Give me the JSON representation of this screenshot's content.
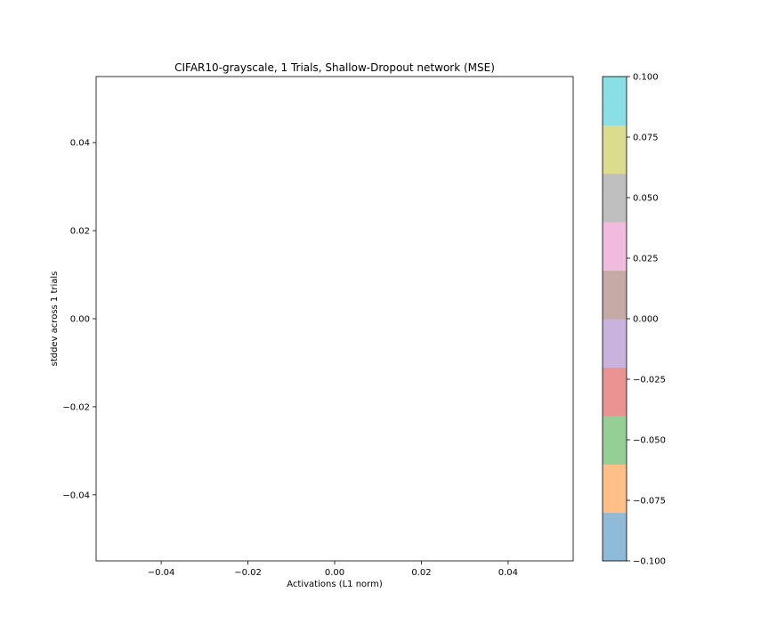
{
  "chart_data": {
    "type": "scatter",
    "title": "CIFAR10-grayscale, 1 Trials, Shallow-Dropout network (MSE)",
    "xlabel": "Activations (L1 norm)",
    "ylabel": "stddev across 1 trials",
    "xlim": [
      -0.055,
      0.055
    ],
    "ylim": [
      -0.055,
      0.055
    ],
    "x_ticks": [
      -0.04,
      -0.02,
      0.0,
      0.02,
      0.04
    ],
    "x_tick_labels": [
      "−0.04",
      "−0.02",
      "0.00",
      "0.02",
      "0.04"
    ],
    "y_ticks": [
      -0.04,
      -0.02,
      0.0,
      0.02,
      0.04
    ],
    "y_tick_labels": [
      "−0.04",
      "−0.02",
      "0.00",
      "0.02",
      "0.04"
    ],
    "points": [],
    "grid": false,
    "colorbar": {
      "range": [
        -0.1,
        0.1
      ],
      "ticks": [
        -0.1,
        -0.075,
        -0.05,
        -0.025,
        0.0,
        0.025,
        0.05,
        0.075,
        0.1
      ],
      "tick_labels": [
        "−0.100",
        "−0.075",
        "−0.050",
        "−0.025",
        "0.000",
        "0.025",
        "0.050",
        "0.075",
        "0.100"
      ],
      "colors": [
        "#8fbbd9",
        "#ffbf86",
        "#95cf95",
        "#ea9393",
        "#c9b3de",
        "#c6aaa5",
        "#f1bbe0",
        "#bfbfbf",
        "#dcdc8e",
        "#8adfe7"
      ]
    }
  }
}
